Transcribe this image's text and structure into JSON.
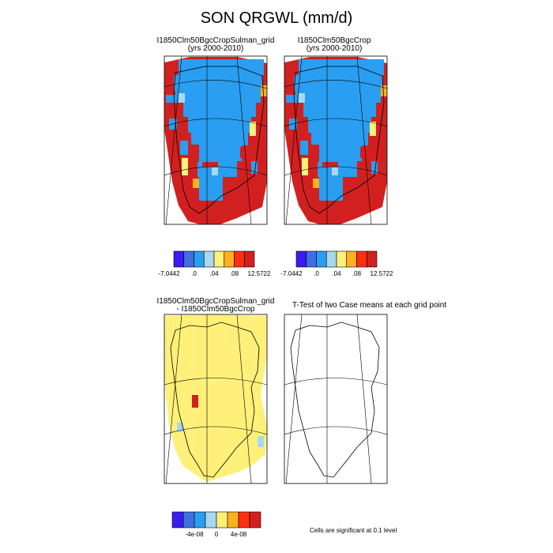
{
  "title": "SON QRGWL (mm/d)",
  "panels": [
    {
      "title_line1": "I1850Clm50BgcCropSulman_grid",
      "title_line2": "(yrs 2000-2010)"
    },
    {
      "title_line1": "I1850Clm50BgcCrop",
      "title_line2": "(yrs 2000-2010)"
    },
    {
      "title_line1": "I1850Clm50BgcCropSulman_grid",
      "title_line2": "- I1850Clm50BgcCrop"
    },
    {
      "title_line1": "T-Test of two Case means at each grid point",
      "title_line2": ""
    }
  ],
  "colorbars": [
    {
      "colors": [
        "#3a1cf0",
        "#3f6fe0",
        "#2a9ef0",
        "#a8d8f0",
        "#fff07a",
        "#ffb020",
        "#ff3010",
        "#d22020"
      ],
      "tick_labels": [
        "-7.0442",
        ".0",
        ".04",
        ".08",
        "12.5722"
      ]
    },
    {
      "colors": [
        "#3a1cf0",
        "#3f6fe0",
        "#2a9ef0",
        "#a8d8f0",
        "#fff07a",
        "#ffb020",
        "#ff3010",
        "#d22020"
      ],
      "tick_labels": [
        "-7.0442",
        ".0",
        ".04",
        ".08",
        "12.5722"
      ]
    },
    {
      "colors": [
        "#3a1cf0",
        "#3f6fe0",
        "#2a9ef0",
        "#a8d8f0",
        "#fff07a",
        "#ffb020",
        "#ff3010",
        "#d22020"
      ],
      "tick_labels": [
        "-4e-08",
        "0",
        "4e-08"
      ]
    }
  ],
  "footnote": "Cells are significant at 0.1 level",
  "chart_data": [
    {
      "type": "heatmap",
      "title": "I1850Clm50BgcCropSulman_grid (yrs 2000-2010)",
      "region": "Greenland",
      "color_levels": [
        "-7.0442",
        ".0",
        ".04",
        ".08",
        "12.5722"
      ]
    },
    {
      "type": "heatmap",
      "title": "I1850Clm50BgcCrop (yrs 2000-2010)",
      "region": "Greenland",
      "color_levels": [
        "-7.0442",
        ".0",
        ".04",
        ".08",
        "12.5722"
      ]
    },
    {
      "type": "heatmap",
      "title": "I1850Clm50BgcCropSulman_grid - I1850Clm50BgcCrop",
      "region": "Greenland",
      "color_levels": [
        "-4e-08",
        "0",
        "4e-08"
      ]
    },
    {
      "type": "heatmap",
      "title": "T-Test of two Case means at each grid point",
      "region": "Greenland"
    }
  ]
}
